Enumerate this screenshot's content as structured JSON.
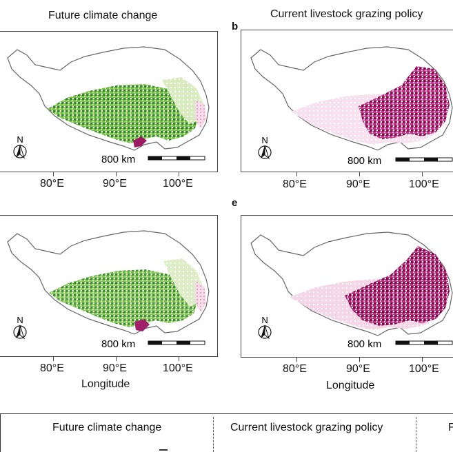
{
  "top_left_title": "Future climate change",
  "top_right_title": "Current livestock grazing policy",
  "panel_b_letter": "b",
  "panel_e_letter": "e",
  "north_letter": "N",
  "scale_label": "800 km",
  "lon_ticks": [
    "80°E",
    "90°E",
    "100°E"
  ],
  "x_axis_title": "Longitude",
  "legend": {
    "col1_title": "Future climate change",
    "col2_title": "Current livestock grazing policy",
    "col3_partial": "F"
  },
  "colors": {
    "green_dark": "#1a6e1a",
    "green_mid": "#5aa63a",
    "green_light": "#b7dc8e",
    "pink_dark": "#8c0a4f",
    "pink_mid": "#c73e88",
    "pink_light": "#f3cfe3",
    "outline": "#666666"
  }
}
